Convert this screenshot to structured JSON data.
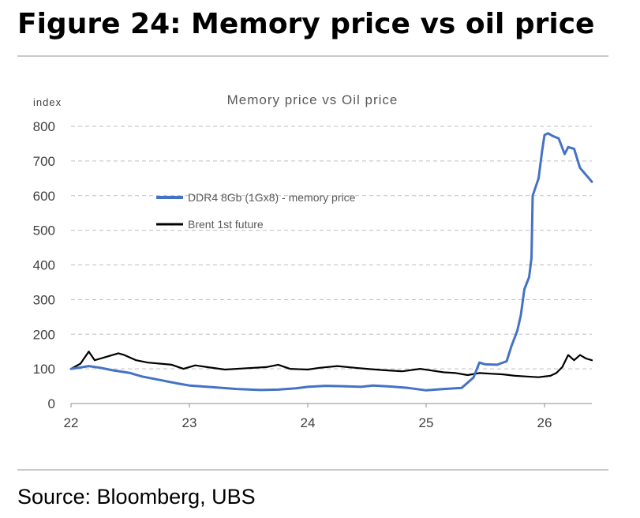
{
  "figure": {
    "title": "Figure 24: Memory price vs oil price",
    "source": "Source: Bloomberg, UBS"
  },
  "colors": {
    "memory": "#4472c4",
    "oil": "#000000",
    "grid": "#bfbfbf",
    "rule": "#c8c8c8"
  },
  "chart_data": {
    "type": "line",
    "title": "Memory price vs Oil price",
    "ylabel": "index",
    "xlabel": "",
    "ylim": [
      0,
      800
    ],
    "xlim": [
      22,
      26.4
    ],
    "y_ticks": [
      0,
      100,
      200,
      300,
      400,
      500,
      600,
      700,
      800
    ],
    "x_ticks": [
      22,
      23,
      24,
      25,
      26
    ],
    "x_tick_labels": [
      "22",
      "23",
      "24",
      "25",
      "26"
    ],
    "y_tick_labels": [
      "0",
      "100",
      "200",
      "300",
      "400",
      "500",
      "600",
      "700",
      "800"
    ],
    "grid": "horizontal dashed",
    "legend_position": "upper-left inside plot",
    "series": [
      {
        "name": "DDR4 8Gb (1Gx8) - memory price",
        "color": "#4472c4",
        "points": [
          [
            22.0,
            100
          ],
          [
            22.1,
            105
          ],
          [
            22.15,
            108
          ],
          [
            22.25,
            103
          ],
          [
            22.35,
            96
          ],
          [
            22.5,
            88
          ],
          [
            22.6,
            78
          ],
          [
            22.75,
            68
          ],
          [
            22.9,
            58
          ],
          [
            23.0,
            52
          ],
          [
            23.2,
            47
          ],
          [
            23.4,
            42
          ],
          [
            23.6,
            39
          ],
          [
            23.75,
            40
          ],
          [
            23.9,
            44
          ],
          [
            24.0,
            48
          ],
          [
            24.15,
            51
          ],
          [
            24.3,
            50
          ],
          [
            24.45,
            48
          ],
          [
            24.55,
            52
          ],
          [
            24.7,
            49
          ],
          [
            24.85,
            45
          ],
          [
            25.0,
            38
          ],
          [
            25.15,
            42
          ],
          [
            25.3,
            45
          ],
          [
            25.4,
            75
          ],
          [
            25.45,
            118
          ],
          [
            25.5,
            113
          ],
          [
            25.6,
            112
          ],
          [
            25.68,
            122
          ],
          [
            25.72,
            165
          ],
          [
            25.77,
            210
          ],
          [
            25.8,
            255
          ],
          [
            25.83,
            330
          ],
          [
            25.87,
            365
          ],
          [
            25.89,
            420
          ],
          [
            25.9,
            600
          ],
          [
            25.95,
            650
          ],
          [
            25.98,
            730
          ],
          [
            26.0,
            775
          ],
          [
            26.03,
            780
          ],
          [
            26.07,
            772
          ],
          [
            26.12,
            765
          ],
          [
            26.17,
            720
          ],
          [
            26.2,
            740
          ],
          [
            26.25,
            735
          ],
          [
            26.3,
            680
          ],
          [
            26.35,
            660
          ],
          [
            26.4,
            640
          ]
        ]
      },
      {
        "name": "Brent 1st future",
        "color": "#000000",
        "points": [
          [
            22.0,
            100
          ],
          [
            22.08,
            115
          ],
          [
            22.15,
            150
          ],
          [
            22.2,
            125
          ],
          [
            22.25,
            130
          ],
          [
            22.3,
            135
          ],
          [
            22.4,
            145
          ],
          [
            22.45,
            140
          ],
          [
            22.55,
            125
          ],
          [
            22.65,
            118
          ],
          [
            22.75,
            115
          ],
          [
            22.85,
            112
          ],
          [
            22.95,
            100
          ],
          [
            23.05,
            110
          ],
          [
            23.15,
            105
          ],
          [
            23.3,
            98
          ],
          [
            23.5,
            102
          ],
          [
            23.65,
            105
          ],
          [
            23.75,
            112
          ],
          [
            23.85,
            100
          ],
          [
            24.0,
            98
          ],
          [
            24.1,
            103
          ],
          [
            24.25,
            108
          ],
          [
            24.4,
            103
          ],
          [
            24.5,
            100
          ],
          [
            24.65,
            96
          ],
          [
            24.8,
            93
          ],
          [
            24.95,
            100
          ],
          [
            25.05,
            95
          ],
          [
            25.15,
            90
          ],
          [
            25.25,
            88
          ],
          [
            25.35,
            82
          ],
          [
            25.45,
            88
          ],
          [
            25.55,
            86
          ],
          [
            25.65,
            84
          ],
          [
            25.75,
            80
          ],
          [
            25.85,
            78
          ],
          [
            25.95,
            76
          ],
          [
            26.05,
            80
          ],
          [
            26.1,
            88
          ],
          [
            26.15,
            105
          ],
          [
            26.2,
            140
          ],
          [
            26.25,
            125
          ],
          [
            26.3,
            140
          ],
          [
            26.35,
            130
          ],
          [
            26.4,
            125
          ]
        ]
      }
    ]
  }
}
